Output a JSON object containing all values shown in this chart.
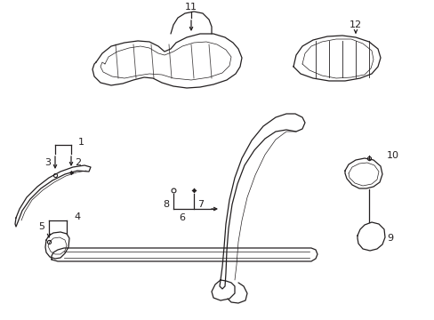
{
  "bg_color": "#ffffff",
  "line_color": "#231f20",
  "fig_width": 4.89,
  "fig_height": 3.6,
  "dpi": 100
}
